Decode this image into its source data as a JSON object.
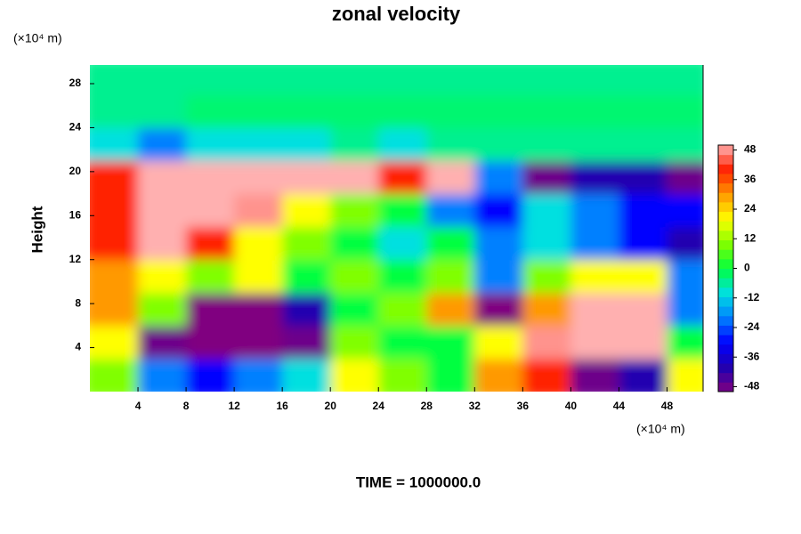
{
  "chart_data": {
    "type": "heatmap",
    "title": "zonal velocity",
    "ylabel": "Height",
    "x_unit_label": "(×10⁴ m)",
    "y_unit_label": "(×10⁴ m)",
    "footer": "TIME = 1000000.0",
    "xlim": [
      0,
      51
    ],
    "xticks": [
      4,
      8,
      12,
      16,
      20,
      24,
      28,
      32,
      36,
      40,
      44,
      48
    ],
    "ylim": [
      0,
      29.7
    ],
    "yticks": [
      4,
      8,
      12,
      16,
      20,
      24,
      28
    ],
    "x_bins": [
      0,
      4,
      8,
      12,
      16,
      20,
      24,
      28,
      32,
      36,
      40,
      44,
      48,
      51
    ],
    "y_bins": [
      0,
      3,
      6,
      9,
      12,
      15,
      18,
      21,
      24,
      27,
      29.7
    ],
    "z": [
      [
        10,
        -20,
        -30,
        -20,
        -10,
        20,
        10,
        0,
        30,
        40,
        -48,
        -40,
        20
      ],
      [
        20,
        -48,
        -50,
        -50,
        -48,
        10,
        0,
        0,
        20,
        48,
        50,
        50,
        0
      ],
      [
        30,
        10,
        -50,
        -50,
        -40,
        0,
        10,
        30,
        -50,
        30,
        50,
        50,
        -20
      ],
      [
        30,
        20,
        10,
        20,
        0,
        10,
        0,
        10,
        -20,
        10,
        20,
        20,
        -20
      ],
      [
        40,
        50,
        40,
        20,
        10,
        0,
        -10,
        0,
        -20,
        -10,
        -20,
        -30,
        -40
      ],
      [
        40,
        50,
        50,
        48,
        20,
        10,
        0,
        -20,
        -30,
        -10,
        -20,
        -30,
        -30
      ],
      [
        40,
        50,
        50,
        50,
        50,
        50,
        40,
        50,
        -20,
        -48,
        -40,
        -40,
        -48
      ],
      [
        -10,
        -20,
        -10,
        -10,
        -10,
        -5,
        -10,
        -5,
        -5,
        -5,
        -5,
        -5,
        -5
      ],
      [
        -5,
        -5,
        -3,
        -3,
        -3,
        -3,
        -3,
        -3,
        -3,
        -3,
        -3,
        -3,
        -3
      ],
      [
        -5,
        -5,
        -5,
        -5,
        -5,
        -5,
        -5,
        -5,
        -5,
        -5,
        -5,
        -5,
        -5
      ]
    ],
    "zlim": [
      -50,
      50
    ],
    "colorbar_ticks": [
      -48,
      -36,
      -24,
      -12,
      0,
      12,
      24,
      36,
      48
    ],
    "colorscale": [
      "#800080",
      "#2000b0",
      "#0000ff",
      "#0080ff",
      "#00e0e0",
      "#00ff40",
      "#80ff00",
      "#ffff00",
      "#ff9900",
      "#ff2000",
      "#ffb0b0"
    ]
  }
}
